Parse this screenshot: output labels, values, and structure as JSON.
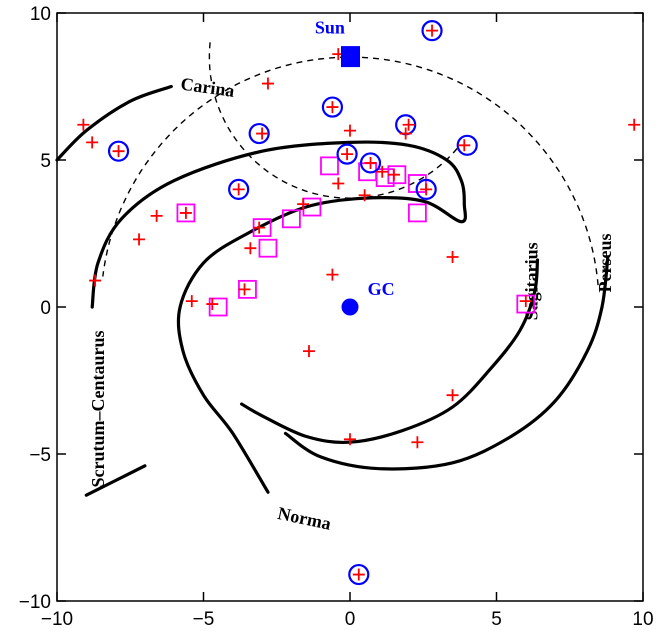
{
  "chart_data": {
    "type": "scatter",
    "title": "",
    "xlabel": "",
    "ylabel": "",
    "xlim": [
      -10,
      10
    ],
    "ylim": [
      -10,
      10
    ],
    "grid": false,
    "x_ticks": [
      -10,
      -5,
      0,
      5,
      10
    ],
    "y_ticks": [
      -10,
      -5,
      0,
      5,
      10
    ],
    "x_tick_labels": [
      "−10",
      "−5",
      "0",
      "5",
      "10"
    ],
    "y_tick_labels": [
      "−10",
      "−5",
      "0",
      "5",
      "10"
    ],
    "colors": {
      "cross": "#ff0000",
      "circle": "#0000ff",
      "square": "#ff00ff",
      "marker": "#0000ff",
      "arm": "#000000"
    },
    "markers": [
      {
        "label": "Sun",
        "shape": "square",
        "x": 0,
        "y": 8.5,
        "label_x": -1.2,
        "label_y": 9.3
      },
      {
        "label": "GC",
        "shape": "circle",
        "x": 0,
        "y": 0,
        "label_x": 0.6,
        "label_y": 0.4
      }
    ],
    "arms": [
      {
        "name": "Carina",
        "label_x": -5.8,
        "label_y": 7.4,
        "label_rotate": 8,
        "points": [
          [
            -10.0,
            5.0
          ],
          [
            -9.0,
            6.0
          ],
          [
            -7.5,
            7.0
          ],
          [
            -6.1,
            7.5
          ]
        ]
      },
      {
        "name": "Scrutum–Centaurus",
        "label_x": -8.4,
        "label_y": -0.8,
        "label_rotate": -90,
        "points": [
          [
            -8.8,
            0.0
          ],
          [
            -8.6,
            1.5
          ],
          [
            -7.8,
            3.0
          ],
          [
            -6.0,
            4.3
          ],
          [
            -3.0,
            5.3
          ],
          [
            0.0,
            5.6
          ],
          [
            2.0,
            5.5
          ],
          [
            3.3,
            5.0
          ],
          [
            3.8,
            4.3
          ],
          [
            3.9,
            3.5
          ],
          [
            3.8,
            2.9
          ],
          [
            2.5,
            3.6
          ],
          [
            0.5,
            3.7
          ],
          [
            -1.5,
            3.4
          ],
          [
            -3.5,
            2.5
          ],
          [
            -5.0,
            1.5
          ],
          [
            -5.8,
            0.0
          ],
          [
            -5.7,
            -1.5
          ],
          [
            -5.0,
            -3.0
          ],
          [
            -4.0,
            -4.3
          ],
          [
            -2.8,
            -6.3
          ]
        ]
      },
      {
        "name": "Norma",
        "label_x": -2.5,
        "label_y": -7.2,
        "label_rotate": 12,
        "points": [
          [
            -9.0,
            -6.4
          ],
          [
            -7.0,
            -5.4
          ]
        ]
      },
      {
        "name": "Sagitarius",
        "label_x": 6.4,
        "label_y": 2.2,
        "label_rotate": -90,
        "points": [
          [
            6.4,
            1.6
          ],
          [
            6.3,
            0.5
          ],
          [
            5.8,
            -0.8
          ],
          [
            4.8,
            -2.1
          ],
          [
            3.5,
            -3.4
          ],
          [
            1.8,
            -4.2
          ],
          [
            0.0,
            -4.6
          ],
          [
            -1.5,
            -4.4
          ],
          [
            -3.0,
            -3.7
          ],
          [
            -3.7,
            -3.3
          ]
        ]
      },
      {
        "name": "Perseus",
        "label_x": 8.9,
        "label_y": 2.5,
        "label_rotate": -90,
        "points": [
          [
            8.8,
            1.7
          ],
          [
            8.6,
            0.0
          ],
          [
            8.1,
            -1.5
          ],
          [
            7.0,
            -3.2
          ],
          [
            5.5,
            -4.4
          ],
          [
            3.5,
            -5.3
          ],
          [
            1.0,
            -5.5
          ],
          [
            -1.0,
            -5.1
          ],
          [
            -2.2,
            -4.3
          ]
        ]
      }
    ],
    "dashed_arcs": [
      {
        "center": [
          0,
          0
        ],
        "radius": 8.5,
        "start_deg": 5,
        "end_deg": 174
      },
      {
        "center": [
          0,
          8.5
        ],
        "radius": 4.8,
        "start_deg": 174,
        "end_deg": 320
      }
    ],
    "cross_points": [
      [
        -9.1,
        6.2
      ],
      [
        -8.8,
        5.6
      ],
      [
        -7.9,
        5.3
      ],
      [
        -6.6,
        3.1
      ],
      [
        -7.2,
        2.3
      ],
      [
        -8.7,
        0.9
      ],
      [
        -5.4,
        0.2
      ],
      [
        -4.7,
        0.1
      ],
      [
        -3.6,
        0.6
      ],
      [
        -3.4,
        2.0
      ],
      [
        -3.1,
        2.7
      ],
      [
        -2.8,
        7.6
      ],
      [
        -3.0,
        5.9
      ],
      [
        -3.8,
        4.0
      ],
      [
        -5.6,
        3.2
      ],
      [
        -0.6,
        6.8
      ],
      [
        0.0,
        6.0
      ],
      [
        -0.1,
        5.2
      ],
      [
        0.7,
        4.9
      ],
      [
        1.1,
        4.6
      ],
      [
        1.5,
        4.5
      ],
      [
        1.9,
        5.9
      ],
      [
        2.0,
        6.2
      ],
      [
        2.6,
        4.0
      ],
      [
        3.9,
        5.5
      ],
      [
        2.8,
        9.4
      ],
      [
        -0.4,
        8.6
      ],
      [
        -1.6,
        3.5
      ],
      [
        -0.4,
        4.2
      ],
      [
        0.5,
        3.8
      ],
      [
        -0.6,
        1.1
      ],
      [
        -1.4,
        -1.5
      ],
      [
        0.0,
        -4.5
      ],
      [
        2.3,
        -4.6
      ],
      [
        3.5,
        -3.0
      ],
      [
        3.5,
        1.7
      ],
      [
        6.0,
        0.2
      ],
      [
        9.7,
        6.2
      ],
      [
        0.3,
        -9.1
      ]
    ],
    "circle_points": [
      [
        -7.9,
        5.3
      ],
      [
        -3.1,
        5.9
      ],
      [
        -3.8,
        4.0
      ],
      [
        -0.6,
        6.8
      ],
      [
        -0.1,
        5.2
      ],
      [
        0.7,
        4.9
      ],
      [
        1.9,
        6.2
      ],
      [
        2.6,
        4.0
      ],
      [
        4.0,
        5.5
      ],
      [
        2.8,
        9.4
      ],
      [
        0.3,
        -9.1
      ]
    ],
    "square_points": [
      [
        -5.6,
        3.2
      ],
      [
        -3.0,
        2.7
      ],
      [
        -2.8,
        2.0
      ],
      [
        -2.0,
        3.0
      ],
      [
        -1.3,
        3.4
      ],
      [
        -0.7,
        4.8
      ],
      [
        0.6,
        4.6
      ],
      [
        1.2,
        4.4
      ],
      [
        1.6,
        4.5
      ],
      [
        2.3,
        4.2
      ],
      [
        2.3,
        3.2
      ],
      [
        -4.5,
        0.0
      ],
      [
        -3.5,
        0.6
      ],
      [
        6.0,
        0.1
      ]
    ]
  }
}
